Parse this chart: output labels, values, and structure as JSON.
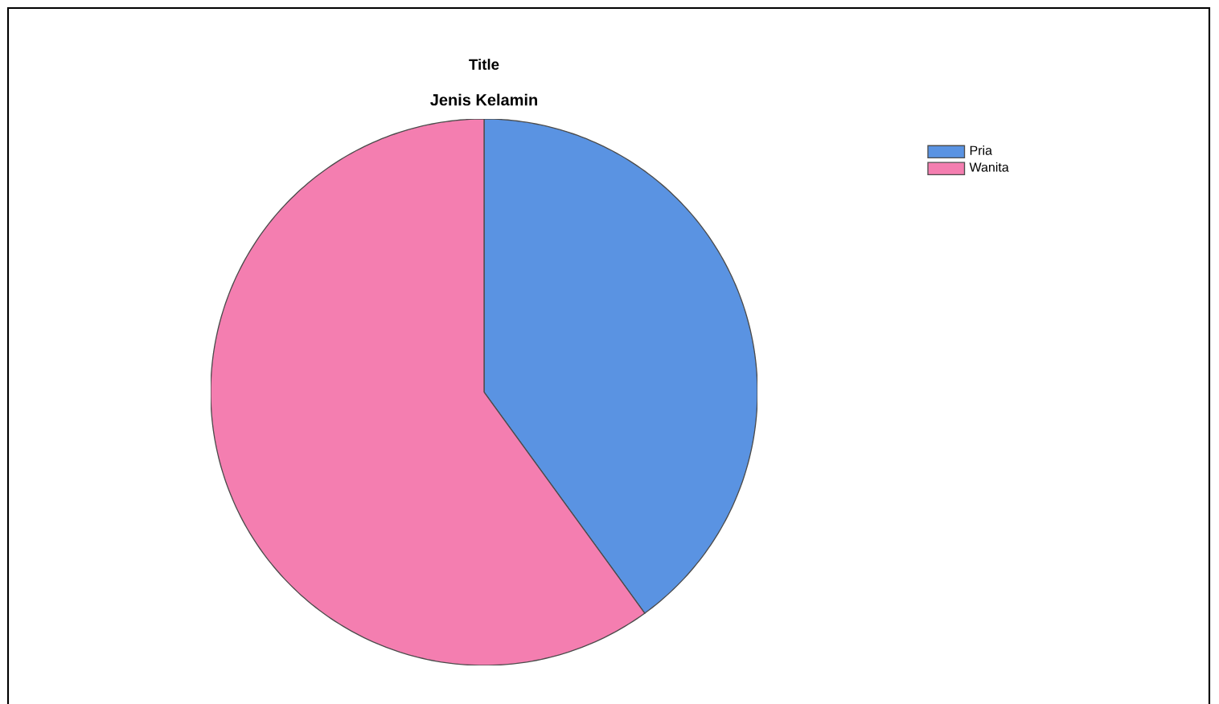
{
  "chart_data": {
    "type": "pie",
    "title": "Title",
    "subtitle": "Jenis Kelamin",
    "categories": [
      "Pria",
      "Wanita"
    ],
    "values": [
      40,
      60
    ],
    "colors": [
      "#5a93e2",
      "#f47eb0"
    ],
    "legend": "top right"
  }
}
